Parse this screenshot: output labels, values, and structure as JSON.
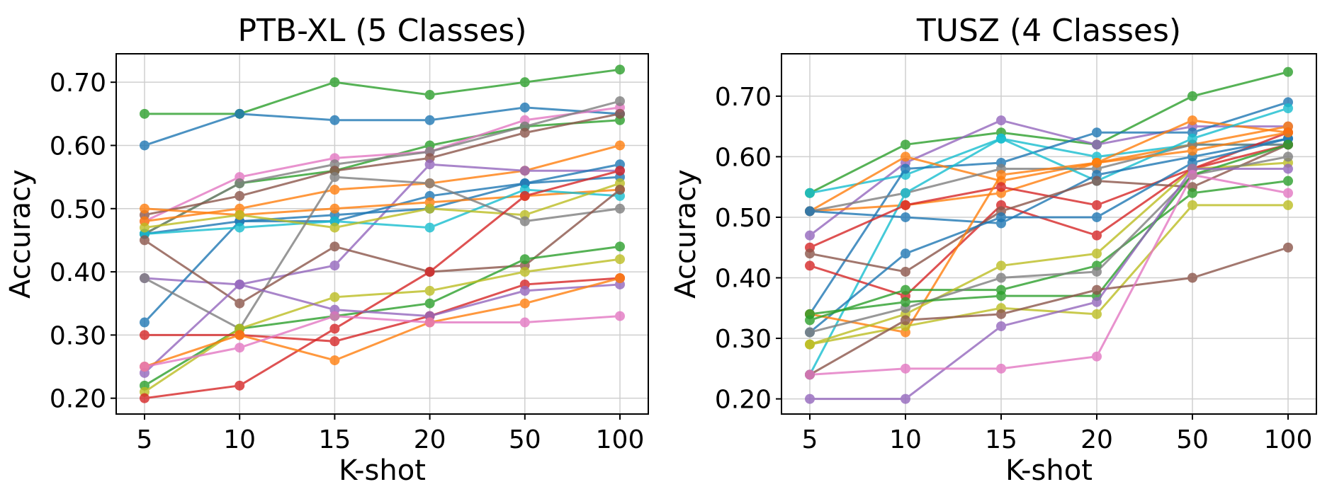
{
  "colors": [
    "#1f77b4",
    "#ff7f0e",
    "#2ca02c",
    "#d62728",
    "#9467bd",
    "#8c564b",
    "#e377c2",
    "#7f7f7f",
    "#bcbd22",
    "#17becf"
  ],
  "chart_data": [
    {
      "type": "line",
      "title": "PTB-XL (5 Classes)",
      "xlabel": "K-shot",
      "ylabel": "Accuracy",
      "categories": [
        "5",
        "10",
        "15",
        "20",
        "50",
        "100"
      ],
      "ylim": [
        0.175,
        0.745
      ],
      "yticks": [
        "0.20",
        "0.30",
        "0.40",
        "0.50",
        "0.60",
        "0.70"
      ],
      "grid": true,
      "series": [
        {
          "color": "#2ca02c",
          "values": [
            0.65,
            0.65,
            0.7,
            0.68,
            0.7,
            0.72
          ]
        },
        {
          "color": "#1f77b4",
          "values": [
            0.6,
            0.65,
            0.64,
            0.64,
            0.66,
            0.65
          ]
        },
        {
          "color": "#2ca02c",
          "values": [
            0.46,
            0.54,
            0.56,
            0.6,
            0.63,
            0.64
          ]
        },
        {
          "color": "#e377c2",
          "values": [
            0.48,
            0.55,
            0.58,
            0.59,
            0.64,
            0.66
          ]
        },
        {
          "color": "#7f7f7f",
          "values": [
            0.46,
            0.54,
            0.57,
            0.59,
            0.63,
            0.67
          ]
        },
        {
          "color": "#8c564b",
          "values": [
            0.49,
            0.52,
            0.56,
            0.58,
            0.62,
            0.65
          ]
        },
        {
          "color": "#ff7f0e",
          "values": [
            0.48,
            0.5,
            0.53,
            0.54,
            0.56,
            0.6
          ]
        },
        {
          "color": "#9467bd",
          "values": [
            0.39,
            0.38,
            0.41,
            0.57,
            0.56,
            0.56
          ]
        },
        {
          "color": "#1f77b4",
          "values": [
            0.32,
            0.48,
            0.48,
            0.52,
            0.54,
            0.57
          ]
        },
        {
          "color": "#1f77b4",
          "values": [
            0.46,
            0.48,
            0.49,
            0.5,
            0.54,
            0.55
          ]
        },
        {
          "color": "#ff7f0e",
          "values": [
            0.5,
            0.49,
            0.5,
            0.51,
            0.52,
            0.53
          ]
        },
        {
          "color": "#17becf",
          "values": [
            0.46,
            0.47,
            0.48,
            0.47,
            0.53,
            0.52
          ]
        },
        {
          "color": "#bcbd22",
          "values": [
            0.47,
            0.49,
            0.47,
            0.5,
            0.49,
            0.54
          ]
        },
        {
          "color": "#7f7f7f",
          "values": [
            0.39,
            0.31,
            0.55,
            0.54,
            0.48,
            0.5
          ]
        },
        {
          "color": "#8c564b",
          "values": [
            0.45,
            0.35,
            0.44,
            0.4,
            0.41,
            0.53
          ]
        },
        {
          "color": "#2ca02c",
          "values": [
            0.22,
            0.31,
            0.33,
            0.35,
            0.42,
            0.44
          ]
        },
        {
          "color": "#bcbd22",
          "values": [
            0.21,
            0.31,
            0.36,
            0.37,
            0.4,
            0.42
          ]
        },
        {
          "color": "#d62728",
          "values": [
            0.2,
            0.22,
            0.31,
            0.4,
            0.52,
            0.56
          ]
        },
        {
          "color": "#d62728",
          "values": [
            0.3,
            0.3,
            0.29,
            0.33,
            0.38,
            0.39
          ]
        },
        {
          "color": "#9467bd",
          "values": [
            0.24,
            0.38,
            0.34,
            0.33,
            0.37,
            0.38
          ]
        },
        {
          "color": "#ff7f0e",
          "values": [
            0.25,
            0.3,
            0.26,
            0.32,
            0.35,
            0.39
          ]
        },
        {
          "color": "#e377c2",
          "values": [
            0.25,
            0.28,
            0.33,
            0.32,
            0.32,
            0.33
          ]
        }
      ]
    },
    {
      "type": "line",
      "title": "TUSZ (4 Classes)",
      "xlabel": "K-shot",
      "ylabel": "Accuracy",
      "categories": [
        "5",
        "10",
        "15",
        "20",
        "50",
        "100"
      ],
      "ylim": [
        0.175,
        0.77
      ],
      "yticks": [
        "0.20",
        "0.30",
        "0.40",
        "0.50",
        "0.60",
        "0.70"
      ],
      "grid": true,
      "series": [
        {
          "color": "#2ca02c",
          "values": [
            0.54,
            0.62,
            0.64,
            0.62,
            0.7,
            0.74
          ]
        },
        {
          "color": "#9467bd",
          "values": [
            0.47,
            0.59,
            0.66,
            0.62,
            0.65,
            0.65
          ]
        },
        {
          "color": "#17becf",
          "values": [
            0.54,
            0.57,
            0.63,
            0.6,
            0.62,
            0.62
          ]
        },
        {
          "color": "#1f77b4",
          "values": [
            0.34,
            0.58,
            0.59,
            0.64,
            0.64,
            0.69
          ]
        },
        {
          "color": "#ff7f0e",
          "values": [
            0.51,
            0.6,
            0.56,
            0.59,
            0.66,
            0.64
          ]
        },
        {
          "color": "#ff7f0e",
          "values": [
            0.51,
            0.52,
            0.54,
            0.59,
            0.62,
            0.65
          ]
        },
        {
          "color": "#7f7f7f",
          "values": [
            0.51,
            0.54,
            0.58,
            0.58,
            0.62,
            0.62
          ]
        },
        {
          "color": "#17becf",
          "values": [
            0.24,
            0.54,
            0.63,
            0.56,
            0.63,
            0.68
          ]
        },
        {
          "color": "#1f77b4",
          "values": [
            0.51,
            0.5,
            0.49,
            0.57,
            0.6,
            0.63
          ]
        },
        {
          "color": "#d62728",
          "values": [
            0.45,
            0.52,
            0.55,
            0.52,
            0.58,
            0.64
          ]
        },
        {
          "color": "#d62728",
          "values": [
            0.42,
            0.37,
            0.52,
            0.47,
            0.58,
            0.62
          ]
        },
        {
          "color": "#8c564b",
          "values": [
            0.44,
            0.41,
            0.51,
            0.56,
            0.55,
            0.62
          ]
        },
        {
          "color": "#1f77b4",
          "values": [
            0.31,
            0.44,
            0.5,
            0.5,
            0.59,
            0.63
          ]
        },
        {
          "color": "#ff7f0e",
          "values": [
            0.34,
            0.31,
            0.57,
            0.59,
            0.61,
            0.64
          ]
        },
        {
          "color": "#2ca02c",
          "values": [
            0.33,
            0.38,
            0.38,
            0.42,
            0.54,
            0.56
          ]
        },
        {
          "color": "#bcbd22",
          "values": [
            0.29,
            0.34,
            0.42,
            0.44,
            0.58,
            0.59
          ]
        },
        {
          "color": "#bcbd22",
          "values": [
            0.29,
            0.32,
            0.35,
            0.34,
            0.52,
            0.52
          ]
        },
        {
          "color": "#7f7f7f",
          "values": [
            0.31,
            0.35,
            0.4,
            0.41,
            0.57,
            0.6
          ]
        },
        {
          "color": "#2ca02c",
          "values": [
            0.34,
            0.36,
            0.37,
            0.37,
            0.57,
            0.62
          ]
        },
        {
          "color": "#8c564b",
          "values": [
            0.24,
            0.33,
            0.34,
            0.38,
            0.4,
            0.45
          ]
        },
        {
          "color": "#9467bd",
          "values": [
            0.2,
            0.2,
            0.32,
            0.36,
            0.58,
            0.58
          ]
        },
        {
          "color": "#e377c2",
          "values": [
            0.24,
            0.25,
            0.25,
            0.27,
            0.57,
            0.54
          ]
        }
      ]
    }
  ]
}
